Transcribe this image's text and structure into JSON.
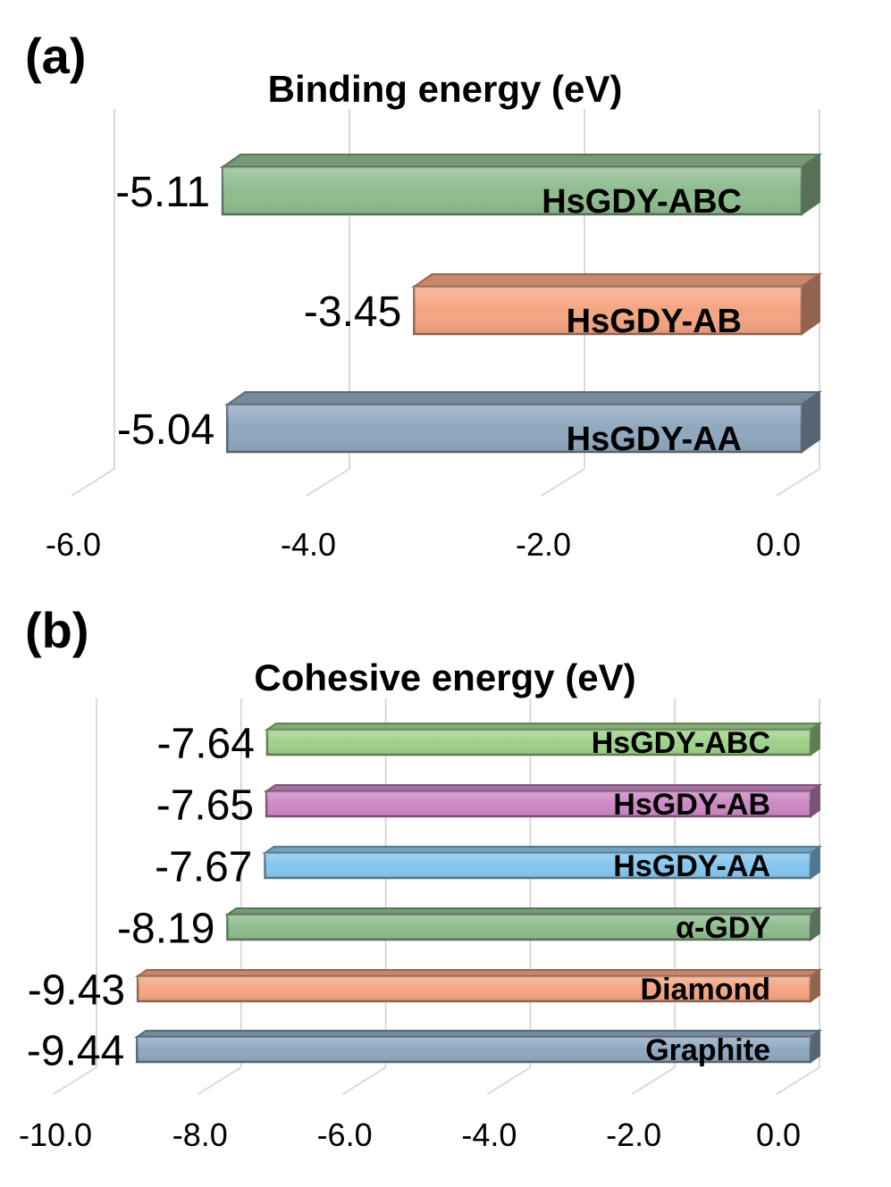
{
  "chart_data": [
    {
      "type": "bar",
      "orientation": "horizontal",
      "panel_label": "(a)",
      "title": "Binding energy (eV)",
      "categories": [
        "HsGDY-ABC",
        "HsGDY-AB",
        "HsGDY-AA"
      ],
      "values": [
        -5.11,
        -3.45,
        -5.04
      ],
      "value_labels": [
        "-5.11",
        "-3.45",
        "-5.04"
      ],
      "colors": [
        "#8fbc8f",
        "#f4a582",
        "#8fa8c0"
      ],
      "xlim": [
        -6.0,
        0.0
      ],
      "xticks": [
        "-6.0",
        "-4.0",
        "-2.0",
        "0.0"
      ],
      "grid": true
    },
    {
      "type": "bar",
      "orientation": "horizontal",
      "panel_label": "(b)",
      "title": "Cohesive energy (eV)",
      "categories": [
        "HsGDY-ABC",
        "HsGDY-AB",
        "HsGDY-AA",
        "α-GDY",
        "Diamond",
        "Graphite"
      ],
      "values": [
        -7.64,
        -7.65,
        -7.67,
        -8.19,
        -9.43,
        -9.44
      ],
      "value_labels": [
        "-7.64",
        "-7.65",
        "-7.67",
        "-8.19",
        "-9.43",
        "-9.44"
      ],
      "colors": [
        "#9ed28a",
        "#cc88c4",
        "#86c6ee",
        "#8fbc8f",
        "#f4a582",
        "#8fa8c0"
      ],
      "xlim": [
        -10.0,
        0.0
      ],
      "xticks": [
        "-10.0",
        "-8.0",
        "-6.0",
        "-4.0",
        "-2.0",
        "0.0"
      ],
      "grid": true
    }
  ]
}
